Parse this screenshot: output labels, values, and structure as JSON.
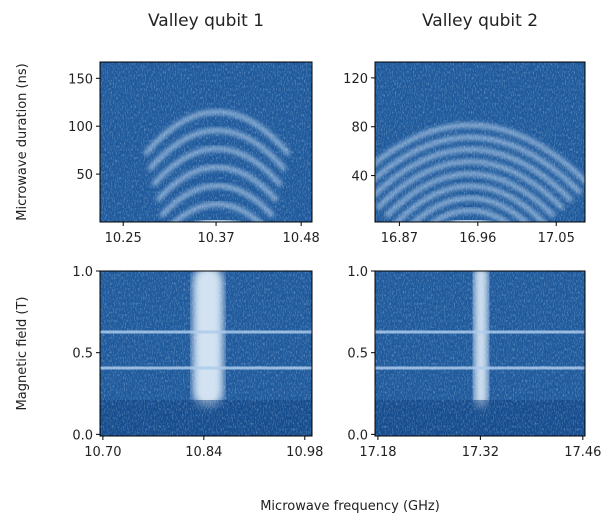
{
  "figure": {
    "xlabel": "Microwave frequency (GHz)"
  },
  "chart_data": [
    {
      "type": "heatmap",
      "title": "Valley qubit 1",
      "ylabel": "Microwave duration (ns)",
      "xlim": [
        10.22,
        10.494
      ],
      "xticks": [
        10.25,
        10.37,
        10.48
      ],
      "ylim": [
        0,
        167
      ],
      "yticks": [
        50,
        100,
        150
      ]
    },
    {
      "type": "heatmap",
      "title": "Valley qubit 2",
      "xlim": [
        16.842,
        17.083
      ],
      "xticks": [
        16.87,
        16.96,
        17.05
      ],
      "ylim": [
        2,
        133
      ],
      "yticks": [
        40,
        80,
        120
      ]
    },
    {
      "type": "heatmap",
      "ylabel": "Magnetic field (T)",
      "xlim": [
        10.696,
        10.99
      ],
      "xticks": [
        {
          "value": 10.7,
          "label": "10.70"
        },
        10.84,
        10.98
      ],
      "ylim": [
        -0.01,
        1.0
      ],
      "yticks": [
        {
          "value": 0.0,
          "label": "0.0"
        },
        0.5,
        {
          "value": 1.0,
          "label": "1.0"
        }
      ]
    },
    {
      "type": "heatmap",
      "xlim": [
        17.176,
        17.463
      ],
      "xticks": [
        17.18,
        17.32,
        17.46
      ],
      "ylim": [
        -0.01,
        1.0
      ],
      "yticks": [
        {
          "value": 0.0,
          "label": "0.0"
        },
        0.5,
        {
          "value": 1.0,
          "label": "1.0"
        }
      ]
    }
  ]
}
